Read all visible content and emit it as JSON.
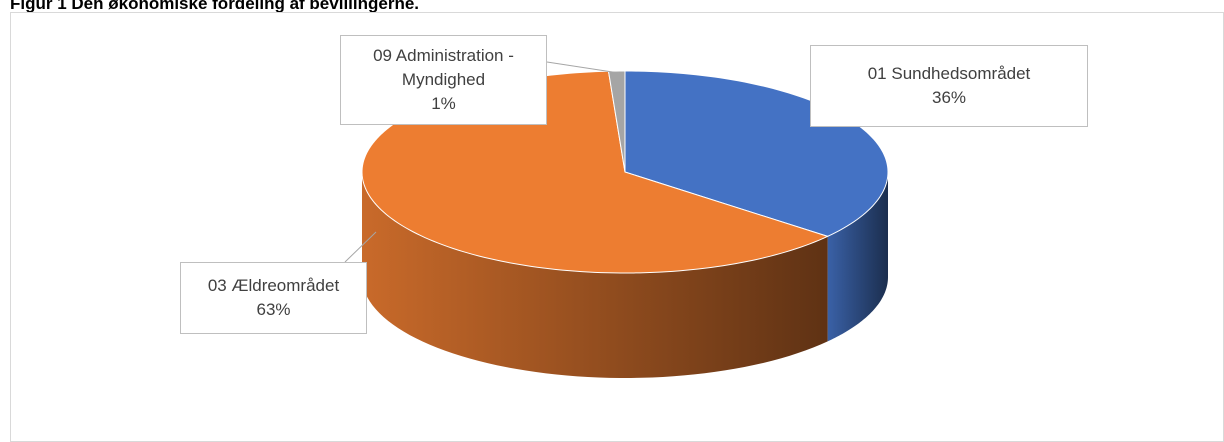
{
  "chart_data": {
    "type": "pie3d",
    "title": "Figur 1 Den økonomiske fordeling af bevillingerne.",
    "categories": [
      "01 Sundhedsområdet",
      "03 Ældreområdet",
      "09 Administration - Myndighed"
    ],
    "values": [
      36,
      63,
      1
    ],
    "value_labels": [
      "36%",
      "63%",
      "1%"
    ],
    "colors": [
      "#4472c4",
      "#ed7d31",
      "#a5a5a5"
    ]
  }
}
